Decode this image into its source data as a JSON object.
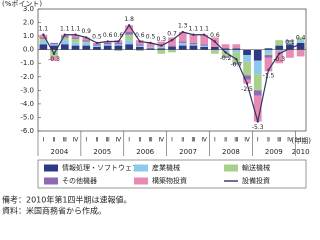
{
  "chart_data": {
    "type": "stacked_bar_line",
    "y_label": "(%ポイント)",
    "x_label": "(年期)",
    "categories": [
      "Ⅰ",
      "Ⅱ",
      "Ⅲ",
      "Ⅳ",
      "Ⅰ",
      "Ⅱ",
      "Ⅲ",
      "Ⅳ",
      "Ⅰ",
      "Ⅱ",
      "Ⅲ",
      "Ⅳ",
      "Ⅰ",
      "Ⅱ",
      "Ⅲ",
      "Ⅳ",
      "Ⅰ",
      "Ⅱ",
      "Ⅲ",
      "Ⅳ",
      "Ⅰ",
      "Ⅱ",
      "Ⅲ",
      "Ⅳ",
      "Ⅰ"
    ],
    "years": [
      "2004",
      "2005",
      "2006",
      "2007",
      "2008",
      "2009",
      "2010"
    ],
    "ylim": [
      -6,
      3
    ],
    "yticks": [
      {
        "value": 3,
        "label": "3.0"
      },
      {
        "value": 2,
        "label": "2.0"
      },
      {
        "value": 1,
        "label": "1.0"
      },
      {
        "value": 0,
        "label": "0.0"
      },
      {
        "value": -1,
        "label": "-1.0"
      },
      {
        "value": -2,
        "label": "-2.0"
      },
      {
        "value": -3,
        "label": "-3.0"
      },
      {
        "value": -4,
        "label": "-4.0"
      },
      {
        "value": -5,
        "label": "-5.0"
      },
      {
        "value": -6,
        "label": "-6.0"
      }
    ],
    "series": [
      {
        "name": "情報処理・ソフトウェア",
        "color": "#2e3a87",
        "values": [
          0.4,
          0.3,
          0.4,
          0.3,
          0.3,
          0.2,
          0.3,
          0.3,
          0.4,
          0.2,
          0.1,
          0.1,
          0.2,
          0.3,
          0.3,
          0.2,
          0.2,
          0.1,
          0.1,
          -0.4,
          -0.8,
          0.1,
          0.3,
          0.4,
          0.5
        ]
      },
      {
        "name": "産業機械",
        "color": "#8cc9ea",
        "values": [
          0.2,
          0.1,
          0.3,
          0.2,
          0.2,
          0.1,
          0.1,
          0.1,
          0.3,
          0.1,
          0.1,
          0.1,
          0.0,
          0.2,
          0.1,
          0.1,
          0.0,
          -0.1,
          -0.2,
          -0.5,
          -1.0,
          -0.3,
          -0.1,
          0.1,
          0.2
        ]
      },
      {
        "name": "輸送機械",
        "color": "#a8d08d",
        "values": [
          0.2,
          -0.5,
          0.2,
          0.3,
          0.1,
          0.0,
          0.0,
          -0.1,
          0.4,
          -0.1,
          0.0,
          -0.3,
          -0.2,
          0.0,
          0.0,
          0.0,
          -0.3,
          -0.4,
          -0.8,
          -1.0,
          -1.2,
          -0.1,
          0.4,
          0.1,
          0.2
        ]
      },
      {
        "name": "その他機器",
        "color": "#8e6bb0",
        "values": [
          0.1,
          0.1,
          0.1,
          0.1,
          0.1,
          0.1,
          0.1,
          0.1,
          0.2,
          0.1,
          0.0,
          0.0,
          0.1,
          0.1,
          0.1,
          0.1,
          0.0,
          -0.1,
          -0.1,
          -0.3,
          -0.4,
          -0.2,
          0.0,
          0.1,
          0.0
        ]
      },
      {
        "name": "構築物投資",
        "color": "#e88bb4",
        "values": [
          0.2,
          -0.3,
          0.1,
          0.2,
          0.2,
          0.1,
          0.1,
          0.2,
          0.5,
          0.3,
          0.3,
          0.4,
          0.6,
          0.7,
          0.6,
          0.7,
          0.7,
          0.3,
          0.3,
          -0.3,
          -1.9,
          -1.0,
          -0.9,
          -0.6,
          -0.5
        ]
      },
      {
        "name": "設備投資",
        "color": "#333366",
        "type": "line",
        "values": [
          1.1,
          -0.3,
          1.1,
          1.1,
          0.9,
          0.5,
          0.6,
          0.6,
          1.8,
          0.6,
          0.5,
          0.3,
          0.7,
          1.3,
          1.1,
          1.1,
          0.6,
          -0.2,
          -0.7,
          -2.5,
          -5.3,
          -1.5,
          -0.3,
          0.1,
          0.4
        ]
      }
    ],
    "notes": [
      "備考：2010年第1四半期は速報値。",
      "資料：米国商務省から作成。"
    ]
  }
}
